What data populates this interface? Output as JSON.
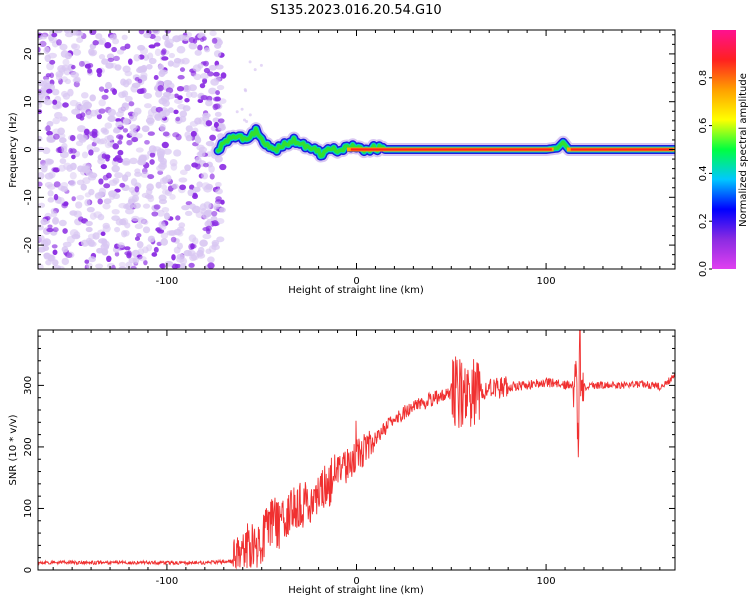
{
  "title": "S135.2023.016.20.54.G10",
  "colors": {
    "snr_line": "#f03030",
    "frame": "#000000",
    "speckle": "#8a2be2",
    "speckle_light": "#d8c6f2",
    "colorbar_stops": [
      "#e040f0",
      "#8a2be2",
      "#0000ff",
      "#00c8ff",
      "#00ff40",
      "#ffff00",
      "#ffa000",
      "#ff2020",
      "#ff1090"
    ]
  },
  "chart_data": [
    {
      "type": "heatmap",
      "name": "spectrogram",
      "xlabel": "Height of straight line (km)",
      "ylabel": "Frequency (Hz)",
      "xlim": [
        -168,
        168
      ],
      "ylim": [
        -25,
        25
      ],
      "x_ticks": [
        -100,
        0,
        100
      ],
      "x_tick_labels": [
        "-100",
        "0",
        "100"
      ],
      "y_ticks": [
        20,
        10,
        0,
        -10,
        -20
      ],
      "y_tick_labels": [
        "20",
        "10",
        "0",
        "-10",
        "-20"
      ],
      "grid": false,
      "noise_region_x": [
        -168,
        -70
      ],
      "ridge": {
        "x": [
          -73,
          -68,
          -63,
          -58,
          -53,
          -48,
          -43,
          -38,
          -33,
          -28,
          -23,
          -18,
          -13,
          -8,
          -3,
          2,
          7,
          10,
          15,
          40,
          70,
          100,
          106,
          109,
          112,
          168
        ],
        "y": [
          0,
          2,
          3,
          2,
          4,
          1,
          0,
          1,
          2,
          1,
          0,
          -1,
          0,
          0,
          0.5,
          0.2,
          0,
          0.4,
          0,
          0,
          0,
          0,
          0.3,
          1.5,
          0,
          0
        ],
        "dominant_frequency_hz": 0
      },
      "colorbar": {
        "label": "Normalized spectral amplitude",
        "range": [
          0,
          1
        ],
        "ticks": [
          0.0,
          0.2,
          0.4,
          0.6,
          0.8
        ],
        "tick_labels": [
          "0.0",
          "0.2",
          "0.4",
          "0.6",
          "0.8"
        ]
      }
    },
    {
      "type": "line",
      "name": "snr",
      "xlabel": "Height of straight line (km)",
      "ylabel": "SNR (10 * v/v)",
      "xlim": [
        -168,
        168
      ],
      "ylim": [
        0,
        390
      ],
      "x_ticks": [
        -100,
        0,
        100
      ],
      "x_tick_labels": [
        "-100",
        "0",
        "100"
      ],
      "y_ticks": [
        0,
        100,
        200,
        300
      ],
      "y_tick_labels": [
        "0",
        "100",
        "200",
        "300"
      ],
      "grid": false,
      "trend": {
        "x": [
          -168,
          -120,
          -80,
          -65,
          -58,
          -45,
          -35,
          -25,
          -15,
          -5,
          0,
          10,
          20,
          30,
          40,
          50,
          55,
          60,
          65,
          70,
          80,
          90,
          100,
          110,
          116,
          118,
          120,
          130,
          140,
          150,
          160,
          168
        ],
        "y": [
          12,
          12,
          12,
          14,
          30,
          70,
          90,
          115,
          140,
          170,
          185,
          215,
          245,
          265,
          278,
          285,
          290,
          285,
          290,
          295,
          298,
          300,
          305,
          300,
          300,
          300,
          298,
          300,
          300,
          302,
          298,
          315
        ]
      }
    }
  ]
}
